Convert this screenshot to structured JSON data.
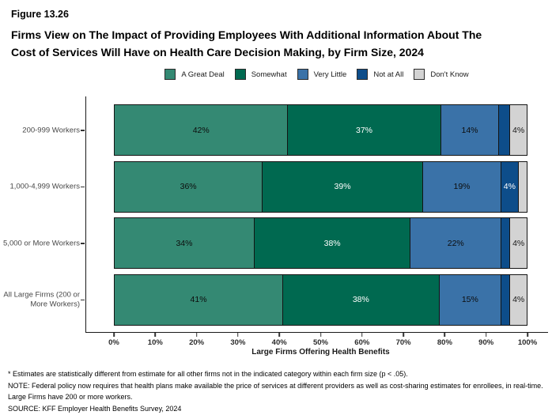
{
  "figure_label": "Figure 13.26",
  "title_line1": "Firms View on The Impact of Providing Employees With Additional Information About The",
  "title_line2": "Cost of Services Will Have on Health Care Decision Making, by Firm Size, 2024",
  "chart_data": {
    "type": "bar",
    "orientation": "horizontal",
    "stacked": true,
    "unit": "percent",
    "grid": false,
    "legend_position": "top-center",
    "xlabel": "Large Firms Offering Health Benefits",
    "xlim": [
      0,
      100
    ],
    "x_tick_labels": [
      "0%",
      "10%",
      "20%",
      "30%",
      "40%",
      "50%",
      "60%",
      "70%",
      "80%",
      "90%",
      "100%"
    ],
    "series_legend": [
      {
        "name": "A Great Deal",
        "color": "#348973",
        "text_color": "#0d0d0d"
      },
      {
        "name": "Somewhat",
        "color": "#006950",
        "text_color": "#ffffff"
      },
      {
        "name": "Very Little",
        "color": "#3A72A8",
        "text_color": "#0d0d0d"
      },
      {
        "name": "Not at All",
        "color": "#0D4D8A",
        "text_color": "#ffffff"
      },
      {
        "name": "Don't Know",
        "color": "#D3D3D3",
        "text_color": "#1a1a1a"
      }
    ],
    "categories": [
      "200-999 Workers",
      "1,000-4,999 Workers",
      "5,000 or More Workers",
      "All Large Firms (200 or More Workers)"
    ],
    "rows": [
      {
        "category": "200-999 Workers",
        "segments": [
          {
            "name": "A Great Deal",
            "value": 42,
            "label": "42%"
          },
          {
            "name": "Somewhat",
            "value": 37,
            "label": "37%"
          },
          {
            "name": "Very Little",
            "value": 14,
            "label": "14%"
          },
          {
            "name": "Not at All",
            "value": 2.5,
            "label": ""
          },
          {
            "name": "Don't Know",
            "value": 4,
            "label": "4%"
          }
        ]
      },
      {
        "category": "1,000-4,999 Workers",
        "segments": [
          {
            "name": "A Great Deal",
            "value": 36,
            "label": "36%"
          },
          {
            "name": "Somewhat",
            "value": 39,
            "label": "39%"
          },
          {
            "name": "Very Little",
            "value": 19,
            "label": "19%"
          },
          {
            "name": "Not at All",
            "value": 4,
            "label": "4%"
          },
          {
            "name": "Don't Know",
            "value": 2,
            "label": ""
          }
        ]
      },
      {
        "category": "5,000 or More Workers",
        "segments": [
          {
            "name": "A Great Deal",
            "value": 34,
            "label": "34%"
          },
          {
            "name": "Somewhat",
            "value": 38,
            "label": "38%"
          },
          {
            "name": "Very Little",
            "value": 22,
            "label": "22%"
          },
          {
            "name": "Not at All",
            "value": 2,
            "label": ""
          },
          {
            "name": "Don't Know",
            "value": 4,
            "label": "4%"
          }
        ]
      },
      {
        "category": "All Large Firms (200 or More Workers)",
        "segments": [
          {
            "name": "A Great Deal",
            "value": 41,
            "label": "41%"
          },
          {
            "name": "Somewhat",
            "value": 38,
            "label": "38%"
          },
          {
            "name": "Very Little",
            "value": 15,
            "label": "15%"
          },
          {
            "name": "Not at All",
            "value": 2,
            "label": ""
          },
          {
            "name": "Don't Know",
            "value": 4,
            "label": "4%"
          }
        ]
      }
    ]
  },
  "footnotes": {
    "asterisk": "* Estimates are statistically different from estimate for all other firms not in the indicated category within each firm size (p < .05).",
    "note": "NOTE: Federal policy now requires that health plans make available the price of services at different providers as well as cost-sharing estimates for enrollees, in real-time. Large Firms have 200 or more workers.",
    "source": "SOURCE: KFF Employer Health Benefits Survey, 2024"
  }
}
